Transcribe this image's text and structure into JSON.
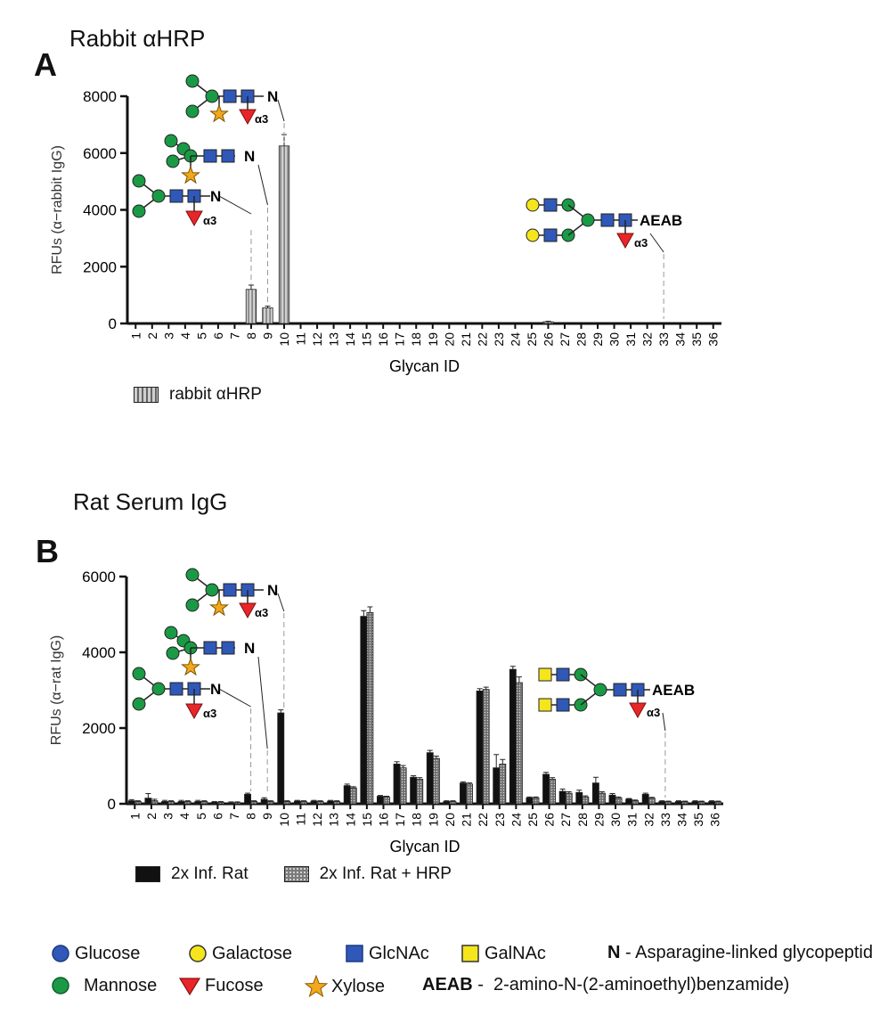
{
  "chart_data": [
    {
      "type": "bar",
      "panel": "A",
      "title": "Rabbit αHRP",
      "xlabel": "Glycan ID",
      "ylabel": "RFUs (α−rabbit IgG)",
      "ylim": [
        0,
        8000
      ],
      "yticks": [
        0,
        2000,
        4000,
        6000,
        8000
      ],
      "categories": [
        "1",
        "2",
        "3",
        "4",
        "5",
        "6",
        "7",
        "8",
        "9",
        "10",
        "11",
        "12",
        "13",
        "14",
        "15",
        "16",
        "17",
        "18",
        "19",
        "20",
        "21",
        "22",
        "23",
        "24",
        "25",
        "26",
        "27",
        "28",
        "29",
        "30",
        "31",
        "32",
        "33",
        "34",
        "35",
        "36"
      ],
      "series": [
        {
          "name": "rabbit αHRP",
          "color": "#c8c8c8",
          "values": [
            0,
            0,
            0,
            0,
            0,
            0,
            0,
            1200,
            550,
            6250,
            0,
            0,
            0,
            0,
            0,
            0,
            0,
            0,
            0,
            0,
            0,
            0,
            0,
            0,
            0,
            60,
            0,
            0,
            0,
            0,
            0,
            0,
            0,
            0,
            0,
            0
          ],
          "errors": [
            0,
            0,
            0,
            0,
            0,
            0,
            0,
            150,
            60,
            400,
            0,
            0,
            0,
            0,
            0,
            0,
            0,
            0,
            0,
            0,
            0,
            0,
            0,
            0,
            0,
            20,
            0,
            0,
            0,
            0,
            0,
            0,
            0,
            0,
            0,
            0
          ]
        }
      ],
      "legend_position": "bottom-left",
      "annotations": [
        "N",
        "N",
        "N",
        "α3",
        "α3",
        "α3",
        "AEAB",
        "α3"
      ]
    },
    {
      "type": "bar",
      "panel": "B",
      "title": "Rat Serum IgG",
      "xlabel": "Glycan ID",
      "ylabel": "RFUs (α−rat IgG)",
      "ylim": [
        0,
        6000
      ],
      "yticks": [
        0,
        2000,
        4000,
        6000
      ],
      "categories": [
        "1",
        "2",
        "3",
        "4",
        "5",
        "6",
        "7",
        "8",
        "9",
        "10",
        "11",
        "12",
        "13",
        "14",
        "15",
        "16",
        "17",
        "18",
        "19",
        "20",
        "21",
        "22",
        "23",
        "24",
        "25",
        "26",
        "27",
        "28",
        "29",
        "30",
        "31",
        "32",
        "33",
        "34",
        "35",
        "36"
      ],
      "series": [
        {
          "name": "2x Inf. Rat",
          "color": "#111111",
          "values": [
            80,
            150,
            60,
            60,
            60,
            40,
            30,
            250,
            120,
            2400,
            70,
            70,
            70,
            480,
            4950,
            200,
            1050,
            700,
            1350,
            60,
            550,
            2980,
            950,
            3550,
            160,
            780,
            330,
            300,
            550,
            230,
            120,
            250,
            60,
            60,
            60,
            60
          ],
          "errors": [
            30,
            120,
            30,
            30,
            30,
            20,
            20,
            30,
            40,
            80,
            20,
            20,
            20,
            40,
            150,
            20,
            60,
            40,
            60,
            20,
            30,
            60,
            350,
            80,
            20,
            50,
            60,
            60,
            150,
            40,
            20,
            30,
            20,
            20,
            20,
            20
          ]
        },
        {
          "name": "2x Inf. Rat + HRP",
          "color": "#808080",
          "values": [
            60,
            80,
            60,
            60,
            60,
            40,
            30,
            60,
            60,
            60,
            60,
            60,
            60,
            420,
            5050,
            180,
            950,
            650,
            1200,
            60,
            520,
            3020,
            1050,
            3200,
            160,
            650,
            280,
            180,
            280,
            150,
            80,
            150,
            50,
            50,
            50,
            50
          ],
          "errors": [
            20,
            40,
            20,
            20,
            20,
            20,
            20,
            20,
            20,
            20,
            20,
            20,
            20,
            30,
            150,
            20,
            60,
            40,
            60,
            20,
            30,
            60,
            120,
            150,
            20,
            40,
            40,
            30,
            40,
            30,
            20,
            20,
            20,
            20,
            20,
            20
          ]
        }
      ],
      "legend_position": "bottom-left",
      "annotations": [
        "N",
        "N",
        "N",
        "α3",
        "α3",
        "α3",
        "AEAB",
        "α3"
      ]
    }
  ],
  "panels": [
    {
      "letter": "A",
      "title": "Rabbit αHRP",
      "legend": [
        "rabbit αHRP"
      ]
    },
    {
      "letter": "B",
      "title": "Rat Serum IgG",
      "legend": [
        "2x Inf. Rat",
        "2x Inf. Rat + HRP"
      ]
    }
  ],
  "glycan_labels": {
    "n": "N",
    "aeab": "AEAB",
    "alpha3": "α3"
  },
  "symbol_key": {
    "row1": [
      {
        "icon": "glucose-icon",
        "label": "Glucose",
        "color": "#2f58b8"
      },
      {
        "icon": "galactose-icon",
        "label": "Galactose",
        "color": "#f5e51c"
      },
      {
        "icon": "glcnac-icon",
        "label": "GlcNAc",
        "color": "#2f58b8"
      },
      {
        "icon": "galnac-icon",
        "label": "GalNAc",
        "color": "#f5e51c"
      }
    ],
    "row1_n_abbrev": "N",
    "row1_n_text": " - Asparagine-linked glycopeptide",
    "row2": [
      {
        "icon": "mannose-icon",
        "label": "Mannose",
        "color": "#1a9a45"
      },
      {
        "icon": "fucose-icon",
        "label": "Fucose",
        "color": "#e8262a"
      },
      {
        "icon": "xylose-icon",
        "label": "Xylose",
        "color": "#f2a81d"
      }
    ],
    "row2_aeab_abbrev": "AEAB",
    "row2_aeab_text": " -  2-amino-N-(2-aminoethyl)benzamide)"
  }
}
